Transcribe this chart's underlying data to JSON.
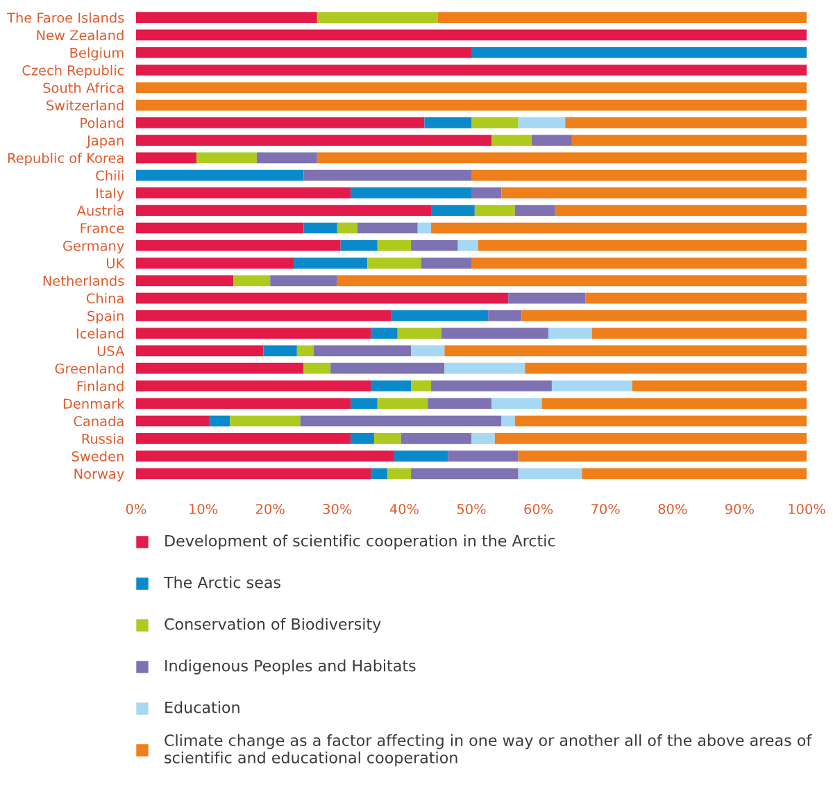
{
  "chart_data": {
    "type": "bar",
    "orientation": "horizontal",
    "stacked": true,
    "categories": [
      "The Faroe Islands",
      "New Zealand",
      "Belgium",
      "Czech Republic",
      "South Africa",
      "Switzerland",
      "Poland",
      "Japan",
      "Republic of Korea",
      "Chili",
      "Italy",
      "Austria",
      "France",
      "Germany",
      "UK",
      "Netherlands",
      "China",
      "Spain",
      "Iceland",
      "USA",
      "Greenland",
      "Finland",
      "Denmark",
      "Canada",
      "Russia",
      "Sweden",
      "Norway"
    ],
    "series": [
      {
        "name": "Development of scientific cooperation in the Arctic",
        "color": "#e31b4a",
        "values": [
          27,
          100,
          50,
          100,
          0,
          0,
          43,
          53,
          9,
          0,
          32,
          44,
          25,
          30.5,
          23.5,
          14.5,
          55.5,
          38,
          35,
          19,
          25,
          35,
          32,
          11,
          32,
          38.5,
          35
        ]
      },
      {
        "name": "The Arctic seas",
        "color": "#0a8acb",
        "values": [
          0,
          0,
          50,
          0,
          0,
          0,
          7,
          0,
          0,
          25,
          18,
          6.5,
          5,
          5.5,
          11,
          0,
          0,
          14.5,
          4,
          5,
          0,
          6,
          4,
          3,
          3.5,
          8,
          2.5
        ]
      },
      {
        "name": "Conservation of Biodiversity",
        "color": "#afca1f",
        "values": [
          18,
          0,
          0,
          0,
          0,
          0,
          7,
          6,
          9,
          0,
          0,
          6,
          3,
          5,
          8,
          5.5,
          0,
          0,
          6.5,
          2.5,
          4,
          3,
          7.5,
          10.5,
          4,
          0,
          3.5
        ]
      },
      {
        "name": "Indigenous Peoples and Habitats",
        "color": "#7f72b2",
        "values": [
          0,
          0,
          0,
          0,
          0,
          0,
          0,
          6,
          9,
          25,
          4.5,
          6,
          9,
          7,
          7.5,
          10,
          11.5,
          5,
          16,
          14.5,
          17,
          18,
          9.5,
          30,
          10.5,
          10.5,
          16
        ]
      },
      {
        "name": "Education",
        "color": "#a6d8f3",
        "values": [
          0,
          0,
          0,
          0,
          0,
          0,
          7,
          0,
          0,
          0,
          0,
          0,
          2,
          3,
          0,
          0,
          0,
          0,
          6.5,
          5,
          12,
          12,
          7.5,
          2,
          3.5,
          0,
          9.5
        ]
      },
      {
        "name": "Climate change as a factor affecting in one way or another all of the above areas of scientific and educational cooperation",
        "color": "#ee7f1b",
        "values": [
          55,
          0,
          0,
          0,
          100,
          100,
          36,
          35,
          73,
          50,
          45.5,
          37.5,
          56,
          49,
          50,
          70,
          33,
          42.5,
          32,
          54,
          42,
          26,
          39.5,
          43.5,
          46.5,
          43,
          33.5
        ]
      }
    ],
    "xlim": [
      0,
      100
    ],
    "xticks": [
      {
        "value": 0,
        "label": "0%"
      },
      {
        "value": 10,
        "label": "10%"
      },
      {
        "value": 20,
        "label": "20%"
      },
      {
        "value": 30,
        "label": "30%"
      },
      {
        "value": 40,
        "label": "40%"
      },
      {
        "value": 50,
        "label": "50%"
      },
      {
        "value": 60,
        "label": "60%"
      },
      {
        "value": 70,
        "label": "70%"
      },
      {
        "value": 80,
        "label": "80%"
      },
      {
        "value": 90,
        "label": "90%"
      },
      {
        "value": 100,
        "label": "100%"
      }
    ],
    "legend": "bottom",
    "grid": false
  }
}
